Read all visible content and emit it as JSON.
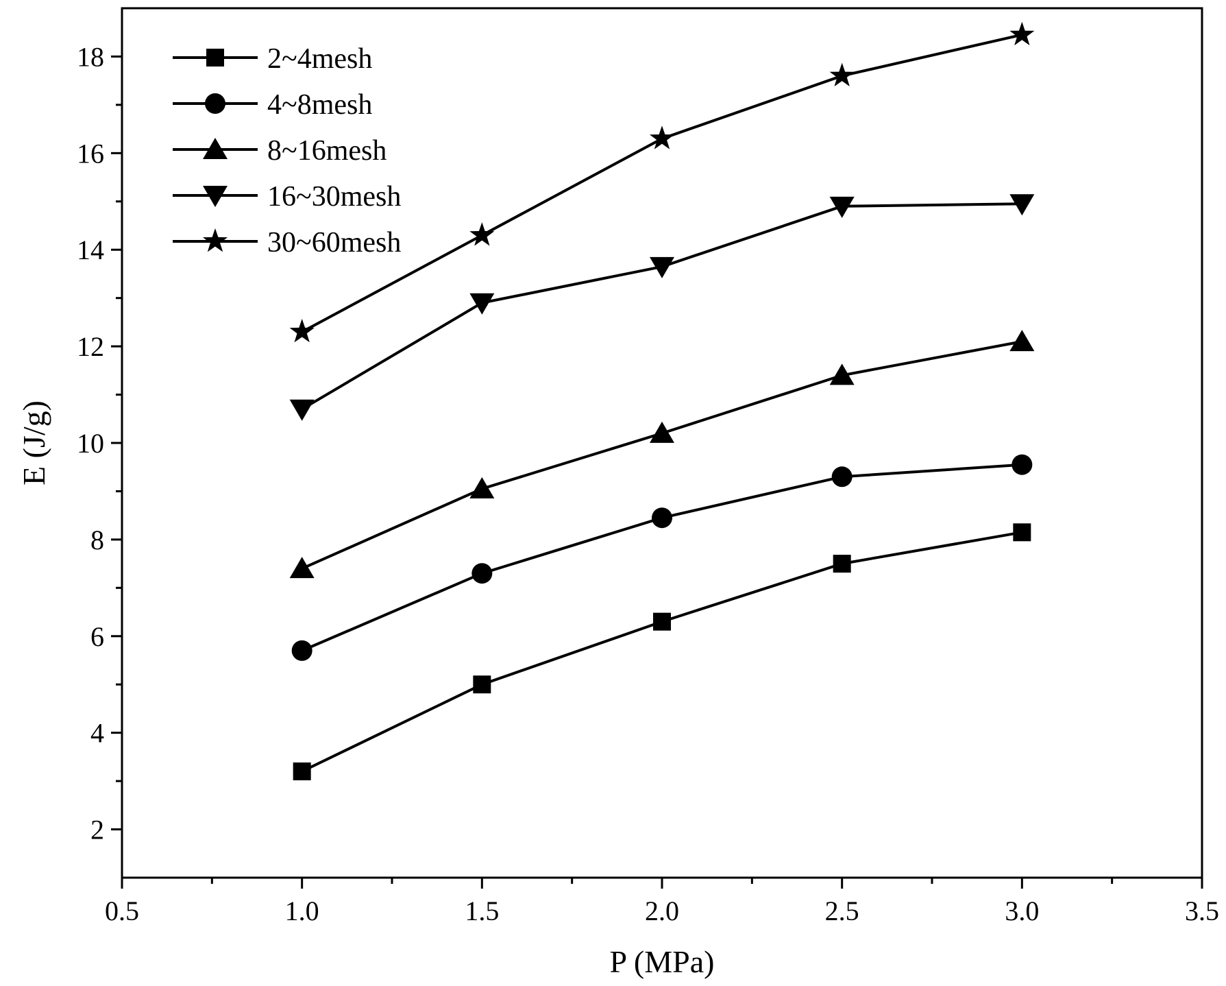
{
  "chart_data": {
    "type": "line",
    "title": "",
    "xlabel": "P (MPa)",
    "ylabel": "E (J/g)",
    "xlim": [
      0.5,
      3.5
    ],
    "ylim": [
      1,
      19
    ],
    "xticks": [
      0.5,
      1.0,
      1.5,
      2.0,
      2.5,
      3.0,
      3.5
    ],
    "xtick_labels": [
      "0.5",
      "1.0",
      "1.5",
      "2.0",
      "2.5",
      "3.0",
      "3.5"
    ],
    "yticks": [
      2,
      4,
      6,
      8,
      10,
      12,
      14,
      16,
      18
    ],
    "ytick_labels": [
      "2",
      "4",
      "6",
      "8",
      "10",
      "12",
      "14",
      "16",
      "18"
    ],
    "legend_position": "top-left",
    "x": [
      1.0,
      1.5,
      2.0,
      2.5,
      3.0
    ],
    "series": [
      {
        "name": "2~4mesh",
        "marker": "square",
        "values": [
          3.2,
          5.0,
          6.3,
          7.5,
          8.15
        ]
      },
      {
        "name": "4~8mesh",
        "marker": "circle",
        "values": [
          5.7,
          7.3,
          8.45,
          9.3,
          9.55
        ]
      },
      {
        "name": "8~16mesh",
        "marker": "triangle-up",
        "values": [
          7.4,
          9.05,
          10.2,
          11.4,
          12.1
        ]
      },
      {
        "name": "16~30mesh",
        "marker": "triangle-down",
        "values": [
          10.7,
          12.9,
          13.65,
          14.9,
          14.95
        ]
      },
      {
        "name": "30~60mesh",
        "marker": "star",
        "values": [
          12.3,
          14.3,
          16.3,
          17.6,
          18.45
        ]
      }
    ],
    "colors": {
      "line": "#000000",
      "marker": "#000000",
      "axis": "#000000"
    }
  }
}
